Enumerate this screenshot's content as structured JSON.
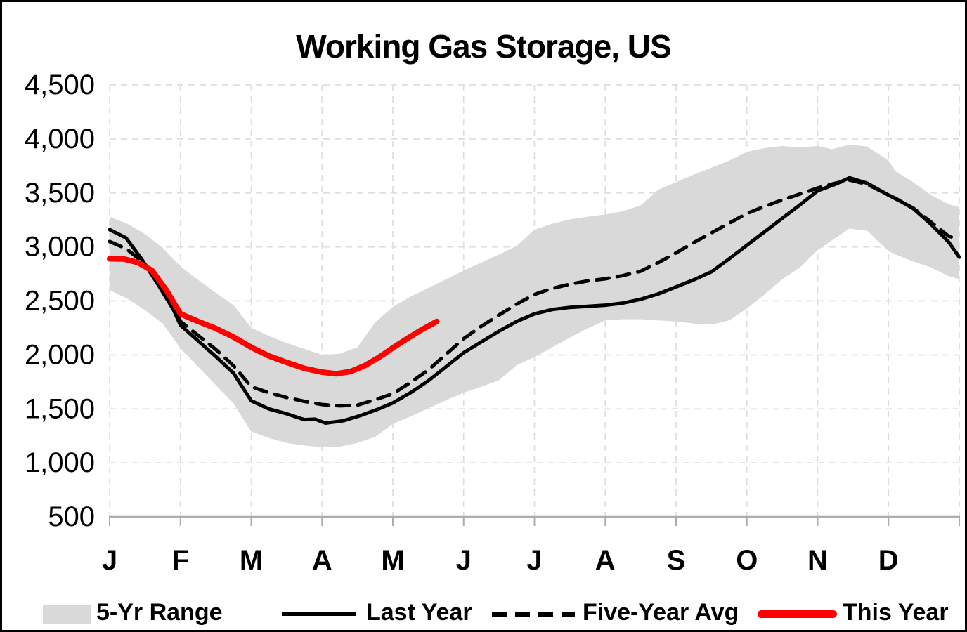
{
  "chart_data": {
    "type": "line",
    "title": "Working Gas Storage, US",
    "xlabel": "",
    "ylabel": "",
    "x_axis": {
      "unit": "month",
      "range": [
        0,
        12
      ],
      "tick_labels": [
        "J",
        "F",
        "M",
        "A",
        "M",
        "J",
        "J",
        "A",
        "S",
        "O",
        "N",
        "D"
      ],
      "grid": true
    },
    "y_axis": {
      "min": 500,
      "max": 4500,
      "step": 500,
      "tick_labels": [
        "500",
        "1,000",
        "1,500",
        "2,000",
        "2,500",
        "3,000",
        "3,500",
        "4,000",
        "4,500"
      ],
      "grid": true
    },
    "colors": {
      "band": "#D9D9D9",
      "line_black": "#000000",
      "line_red": "#FF0000",
      "gridline": "#DEDEDE",
      "axis": "#ADADAD",
      "text": "#000000"
    },
    "legend": [
      {
        "label": "5-Yr Range",
        "swatch": "band",
        "color": "#D9D9D9"
      },
      {
        "label": "Last Year",
        "swatch": "solid",
        "color": "#000000"
      },
      {
        "label": "Five-Year Avg",
        "swatch": "dashed",
        "color": "#000000"
      },
      {
        "label": "This Year",
        "swatch": "solid-thick",
        "color": "#FF0000"
      }
    ],
    "series": [
      {
        "name": "5-Yr Range",
        "type": "band",
        "color": "#D9D9D9",
        "points_x_lo_hi": [
          [
            0,
            2600,
            3280
          ],
          [
            0.25,
            2520,
            3215
          ],
          [
            0.5,
            2415,
            3120
          ],
          [
            0.75,
            2290,
            2990
          ],
          [
            1.0,
            2060,
            2820
          ],
          [
            1.25,
            1890,
            2695
          ],
          [
            1.5,
            1720,
            2575
          ],
          [
            1.75,
            1550,
            2460
          ],
          [
            2.0,
            1290,
            2250
          ],
          [
            2.25,
            1230,
            2175
          ],
          [
            2.5,
            1185,
            2110
          ],
          [
            2.75,
            1160,
            2055
          ],
          [
            3.0,
            1145,
            2000
          ],
          [
            3.25,
            1150,
            2010
          ],
          [
            3.5,
            1185,
            2070
          ],
          [
            3.75,
            1240,
            2300
          ],
          [
            4.0,
            1360,
            2445
          ],
          [
            4.25,
            1430,
            2540
          ],
          [
            4.5,
            1505,
            2620
          ],
          [
            4.75,
            1580,
            2700
          ],
          [
            5.0,
            1650,
            2780
          ],
          [
            5.25,
            1705,
            2855
          ],
          [
            5.5,
            1765,
            2930
          ],
          [
            5.75,
            1905,
            3010
          ],
          [
            6.0,
            1980,
            3160
          ],
          [
            6.25,
            2070,
            3215
          ],
          [
            6.5,
            2160,
            3255
          ],
          [
            6.75,
            2245,
            3280
          ],
          [
            7.0,
            2320,
            3300
          ],
          [
            7.25,
            2330,
            3330
          ],
          [
            7.5,
            2330,
            3385
          ],
          [
            7.75,
            2320,
            3530
          ],
          [
            8.0,
            2310,
            3600
          ],
          [
            8.25,
            2290,
            3670
          ],
          [
            8.5,
            2280,
            3735
          ],
          [
            8.75,
            2320,
            3800
          ],
          [
            9.0,
            2430,
            3880
          ],
          [
            9.25,
            2560,
            3915
          ],
          [
            9.5,
            2700,
            3935
          ],
          [
            9.75,
            2810,
            3920
          ],
          [
            10.0,
            2970,
            3935
          ],
          [
            10.2,
            3060,
            3905
          ],
          [
            10.45,
            3170,
            3945
          ],
          [
            10.7,
            3150,
            3930
          ],
          [
            11.0,
            2960,
            3800
          ],
          [
            11.1,
            2930,
            3700
          ],
          [
            11.35,
            2865,
            3600
          ],
          [
            11.6,
            2810,
            3480
          ],
          [
            11.85,
            2730,
            3395
          ],
          [
            12.0,
            2700,
            3370
          ]
        ]
      },
      {
        "name": "Last Year",
        "type": "line",
        "style": "solid",
        "color": "#000000",
        "points": [
          [
            0,
            3160
          ],
          [
            0.23,
            3085
          ],
          [
            0.45,
            2890
          ],
          [
            0.68,
            2655
          ],
          [
            0.9,
            2420
          ],
          [
            1.0,
            2275
          ],
          [
            1.25,
            2130
          ],
          [
            1.5,
            1985
          ],
          [
            1.75,
            1830
          ],
          [
            2.0,
            1575
          ],
          [
            2.25,
            1500
          ],
          [
            2.5,
            1455
          ],
          [
            2.75,
            1400
          ],
          [
            2.9,
            1405
          ],
          [
            3.05,
            1368
          ],
          [
            3.3,
            1390
          ],
          [
            3.55,
            1440
          ],
          [
            3.8,
            1500
          ],
          [
            4.0,
            1555
          ],
          [
            4.25,
            1650
          ],
          [
            4.5,
            1760
          ],
          [
            4.75,
            1890
          ],
          [
            5.0,
            2020
          ],
          [
            5.25,
            2120
          ],
          [
            5.5,
            2220
          ],
          [
            5.75,
            2310
          ],
          [
            6.0,
            2380
          ],
          [
            6.25,
            2420
          ],
          [
            6.5,
            2440
          ],
          [
            6.75,
            2450
          ],
          [
            7.0,
            2460
          ],
          [
            7.25,
            2480
          ],
          [
            7.5,
            2515
          ],
          [
            7.75,
            2565
          ],
          [
            8.0,
            2630
          ],
          [
            8.25,
            2695
          ],
          [
            8.5,
            2770
          ],
          [
            8.75,
            2890
          ],
          [
            9.0,
            3015
          ],
          [
            9.25,
            3140
          ],
          [
            9.5,
            3265
          ],
          [
            9.75,
            3390
          ],
          [
            10.0,
            3520
          ],
          [
            10.25,
            3580
          ],
          [
            10.45,
            3640
          ],
          [
            10.7,
            3590
          ],
          [
            11.0,
            3480
          ],
          [
            11.1,
            3450
          ],
          [
            11.35,
            3355
          ],
          [
            11.6,
            3210
          ],
          [
            11.85,
            3045
          ],
          [
            12.0,
            2905
          ]
        ]
      },
      {
        "name": "Five-Year Avg",
        "type": "line",
        "style": "dashed",
        "color": "#000000",
        "points": [
          [
            0,
            3050
          ],
          [
            0.23,
            2985
          ],
          [
            0.45,
            2870
          ],
          [
            0.68,
            2720
          ],
          [
            0.9,
            2480
          ],
          [
            1.0,
            2310
          ],
          [
            1.25,
            2180
          ],
          [
            1.5,
            2050
          ],
          [
            1.75,
            1900
          ],
          [
            2.0,
            1705
          ],
          [
            2.25,
            1650
          ],
          [
            2.5,
            1605
          ],
          [
            2.75,
            1570
          ],
          [
            3.0,
            1540
          ],
          [
            3.25,
            1528
          ],
          [
            3.5,
            1535
          ],
          [
            3.75,
            1585
          ],
          [
            4.0,
            1640
          ],
          [
            4.25,
            1745
          ],
          [
            4.5,
            1860
          ],
          [
            4.75,
            2005
          ],
          [
            5.0,
            2150
          ],
          [
            5.25,
            2265
          ],
          [
            5.5,
            2370
          ],
          [
            5.75,
            2470
          ],
          [
            6.0,
            2560
          ],
          [
            6.25,
            2615
          ],
          [
            6.5,
            2655
          ],
          [
            6.75,
            2685
          ],
          [
            7.0,
            2705
          ],
          [
            7.25,
            2735
          ],
          [
            7.5,
            2775
          ],
          [
            7.75,
            2855
          ],
          [
            8.0,
            2945
          ],
          [
            8.25,
            3040
          ],
          [
            8.5,
            3130
          ],
          [
            8.75,
            3220
          ],
          [
            9.0,
            3310
          ],
          [
            9.25,
            3375
          ],
          [
            9.5,
            3435
          ],
          [
            9.75,
            3490
          ],
          [
            10.0,
            3545
          ],
          [
            10.25,
            3590
          ],
          [
            10.45,
            3620
          ],
          [
            10.7,
            3580
          ],
          [
            11.0,
            3480
          ],
          [
            11.35,
            3360
          ],
          [
            11.6,
            3230
          ],
          [
            11.85,
            3100
          ],
          [
            12.0,
            3070
          ]
        ]
      },
      {
        "name": "This Year",
        "type": "line",
        "style": "solid",
        "color": "#FF0000",
        "points": [
          [
            0,
            2890
          ],
          [
            0.2,
            2888
          ],
          [
            0.4,
            2855
          ],
          [
            0.6,
            2780
          ],
          [
            0.8,
            2600
          ],
          [
            1.0,
            2380
          ],
          [
            1.25,
            2310
          ],
          [
            1.5,
            2245
          ],
          [
            1.75,
            2165
          ],
          [
            2.0,
            2070
          ],
          [
            2.25,
            1990
          ],
          [
            2.5,
            1930
          ],
          [
            2.75,
            1875
          ],
          [
            3.0,
            1840
          ],
          [
            3.2,
            1825
          ],
          [
            3.4,
            1845
          ],
          [
            3.6,
            1900
          ],
          [
            3.8,
            1975
          ],
          [
            4.0,
            2065
          ],
          [
            4.2,
            2150
          ],
          [
            4.4,
            2230
          ],
          [
            4.62,
            2310
          ]
        ]
      }
    ]
  }
}
